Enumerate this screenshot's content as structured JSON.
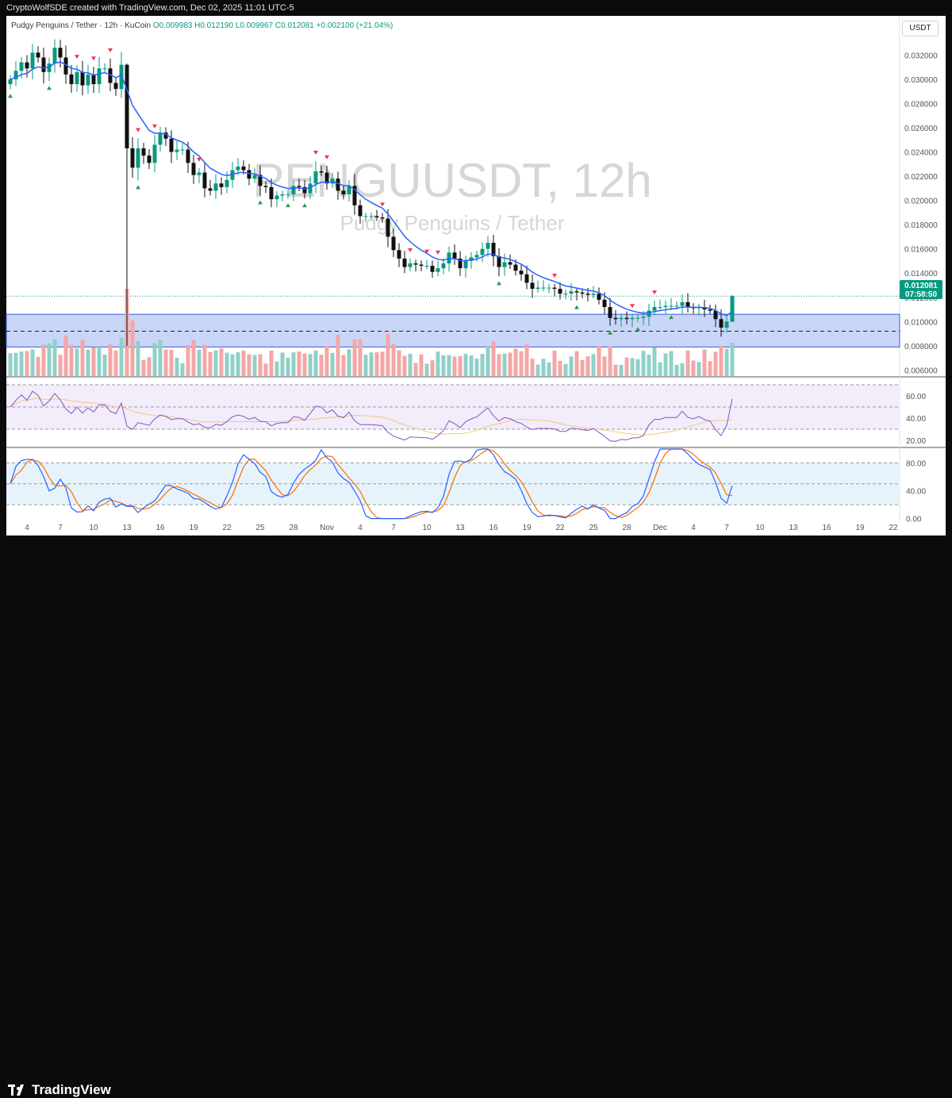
{
  "header": {
    "attribution": "CryptoWolfSDE created with TradingView.com, Dec 02, 2025 11:01 UTC-5"
  },
  "legend": {
    "symbol": "Pudgy Penguins / Tether · 12h · KuCoin",
    "open": "O0.009983",
    "high": "H0.012190",
    "low": "L0.009967",
    "close": "C0.012081",
    "change": "+0.002100 (+21.04%)"
  },
  "currency_button": "USDT",
  "watermark": {
    "title": "PENGUUSDT, 12h",
    "subtitle": "Pudgy Penguins / Tether"
  },
  "price_label": {
    "price": "0.012081",
    "countdown": "07:58:50"
  },
  "footer": {
    "brand": "TradingView"
  },
  "colors": {
    "up": "#089981",
    "down": "#111111",
    "ema": "#2962ff",
    "zone_fill": "#9fb4f0",
    "vol_up": "#8fd0c8",
    "vol_down": "#f4a6a6",
    "rsi": "#7e57c2",
    "rsi_ma": "#f5c77e",
    "stoch_k": "#2962ff",
    "stoch_d": "#ff6d00",
    "signal_up": "#2e9b57",
    "signal_down": "#f23645"
  },
  "chart_data": [
    {
      "type": "candlestick",
      "title": "PENGUUSDT, 12h",
      "subtitle": "Pudgy Penguins / Tether",
      "y_ticks": [
        "0.032000",
        "0.030000",
        "0.028000",
        "0.026000",
        "0.024000",
        "0.022000",
        "0.020000",
        "0.018000",
        "0.016000",
        "0.014000",
        "0.012000",
        "0.010000",
        "0.008000",
        "0.006000"
      ],
      "ylim": [
        0.0055,
        0.0336
      ],
      "x_tick_labels": [
        "4",
        "7",
        "10",
        "13",
        "16",
        "19",
        "22",
        "25",
        "28",
        "Nov",
        "4",
        "7",
        "10",
        "13",
        "16",
        "19",
        "22",
        "25",
        "28",
        "Dec",
        "4",
        "7",
        "10",
        "13",
        "16",
        "19",
        "22"
      ],
      "x_tick_day_index": [
        0,
        3,
        6,
        9,
        12,
        15,
        18,
        21,
        24,
        27,
        30,
        33,
        36,
        39,
        42,
        45,
        48,
        51,
        54,
        57,
        60,
        63,
        66,
        69,
        72,
        75,
        78
      ],
      "x_day_start": -1.5,
      "support_zone": {
        "low": 0.0079,
        "high": 0.0106,
        "mid": 0.0092
      },
      "close": [
        0.03,
        0.0307,
        0.0314,
        0.0309,
        0.0322,
        0.0318,
        0.0306,
        0.0313,
        0.0326,
        0.0318,
        0.0304,
        0.0296,
        0.0306,
        0.0295,
        0.0304,
        0.0296,
        0.0309,
        0.0309,
        0.0297,
        0.0292,
        0.0312,
        0.0243,
        0.0227,
        0.0243,
        0.0237,
        0.0231,
        0.0246,
        0.0256,
        0.0251,
        0.024,
        0.0242,
        0.0242,
        0.0231,
        0.0221,
        0.0223,
        0.021,
        0.0208,
        0.0214,
        0.0211,
        0.0217,
        0.0225,
        0.0228,
        0.0225,
        0.0218,
        0.0221,
        0.0212,
        0.0211,
        0.0201,
        0.0204,
        0.0205,
        0.0205,
        0.0212,
        0.0211,
        0.0206,
        0.0214,
        0.0224,
        0.0223,
        0.0214,
        0.0218,
        0.0208,
        0.0205,
        0.0212,
        0.0196,
        0.0187,
        0.0187,
        0.0187,
        0.0186,
        0.0185,
        0.017,
        0.0159,
        0.0152,
        0.0145,
        0.0148,
        0.0147,
        0.0146,
        0.0146,
        0.0141,
        0.0144,
        0.0148,
        0.0157,
        0.0152,
        0.0144,
        0.015,
        0.0153,
        0.0155,
        0.016,
        0.0165,
        0.0154,
        0.0145,
        0.0149,
        0.0147,
        0.0142,
        0.0139,
        0.0132,
        0.0127,
        0.0128,
        0.0128,
        0.0128,
        0.0127,
        0.0123,
        0.0123,
        0.0125,
        0.0124,
        0.0123,
        0.0122,
        0.0123,
        0.0118,
        0.0112,
        0.0103,
        0.0102,
        0.0103,
        0.0102,
        0.0103,
        0.0103,
        0.0104,
        0.0109,
        0.0112,
        0.0112,
        0.0113,
        0.0113,
        0.0113,
        0.0116,
        0.0112,
        0.0111,
        0.0112,
        0.011,
        0.0109,
        0.0102,
        0.0095,
        0.01,
        0.0121
      ],
      "indicators": {
        "volume_panel": "bars colored by candle direction",
        "rsi": {
          "levels": [
            70,
            50,
            30
          ],
          "ticks": [
            "60.00",
            "40.00",
            "20.00"
          ],
          "ylim": [
            15,
            75
          ]
        },
        "stoch_rsi": {
          "levels": [
            80,
            50,
            20
          ],
          "ticks": [
            "80.00",
            "40.00",
            "0.00"
          ],
          "ylim": [
            -5,
            100
          ]
        }
      }
    }
  ]
}
